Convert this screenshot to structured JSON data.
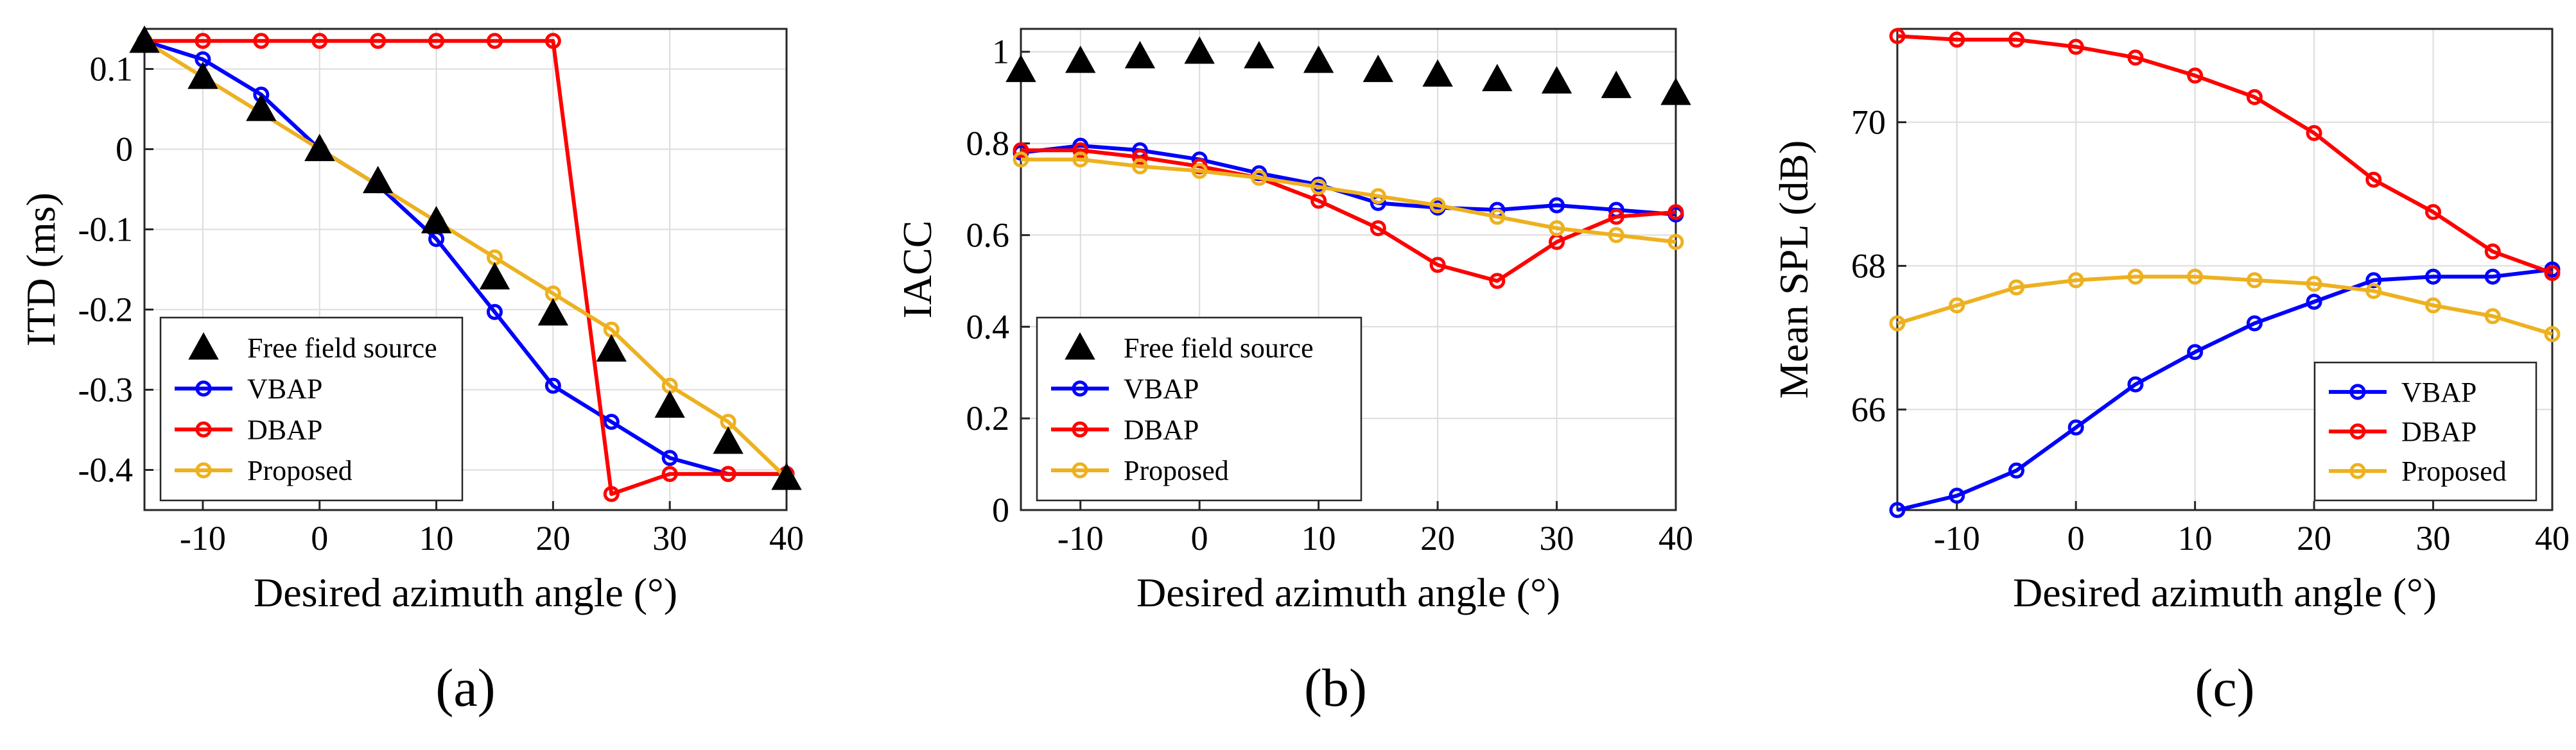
{
  "figure": {
    "captions": [
      "(a)",
      "(b)",
      "(c)"
    ]
  },
  "chart_data": [
    {
      "type": "line",
      "title": "",
      "xlabel": "Desired azimuth angle (°)",
      "ylabel": "ITD (ms)",
      "xlim": [
        -15,
        40
      ],
      "ylim": [
        -0.45,
        0.15
      ],
      "xticks": [
        -10,
        0,
        10,
        20,
        30,
        40
      ],
      "xtick_labels": [
        "-10",
        "0",
        "10",
        "20",
        "30",
        "40"
      ],
      "yticks": [
        0.1,
        0,
        -0.1,
        -0.2,
        -0.3,
        -0.4
      ],
      "ytick_labels": [
        "0.1",
        "0",
        "-0.1",
        "-0.2",
        "-0.3",
        "-0.4"
      ],
      "grid": true,
      "legend_position": "bottom-left",
      "x": [
        -15,
        -10,
        -5,
        0,
        5,
        10,
        15,
        20,
        25,
        30,
        35,
        40
      ],
      "series": [
        {
          "name": "Free field source",
          "style": "triangle",
          "color": "#000000",
          "values": [
            0.135,
            0.09,
            0.05,
            0.0,
            -0.04,
            -0.09,
            -0.16,
            -0.205,
            -0.25,
            -0.32,
            -0.365,
            -0.41
          ]
        },
        {
          "name": "VBAP",
          "style": "line-circle",
          "color": "#0000ff",
          "values": [
            0.135,
            0.112,
            0.068,
            0.0,
            -0.045,
            -0.112,
            -0.203,
            -0.295,
            -0.34,
            -0.385,
            -0.405,
            -0.405
          ]
        },
        {
          "name": "DBAP",
          "style": "line-circle",
          "color": "#ff0000",
          "values": [
            0.135,
            0.135,
            0.135,
            0.135,
            0.135,
            0.135,
            0.135,
            0.135,
            -0.43,
            -0.405,
            -0.405,
            -0.405
          ]
        },
        {
          "name": "Proposed",
          "style": "line-circle",
          "color": "#edb120",
          "values": [
            0.135,
            0.09,
            0.045,
            0.0,
            -0.045,
            -0.09,
            -0.135,
            -0.18,
            -0.225,
            -0.295,
            -0.34,
            -0.41
          ]
        }
      ]
    },
    {
      "type": "line",
      "title": "",
      "xlabel": "Desired azimuth angle (°)",
      "ylabel": "IACC",
      "xlim": [
        -15,
        40
      ],
      "ylim": [
        0,
        1.05
      ],
      "xticks": [
        -10,
        0,
        10,
        20,
        30,
        40
      ],
      "xtick_labels": [
        "-10",
        "0",
        "10",
        "20",
        "30",
        "40"
      ],
      "yticks": [
        0,
        0.2,
        0.4,
        0.6,
        0.8,
        1
      ],
      "ytick_labels": [
        "0",
        "0.2",
        "0.4",
        "0.6",
        "0.8",
        "1"
      ],
      "grid": true,
      "legend_position": "bottom-left",
      "x": [
        -15,
        -10,
        -5,
        0,
        5,
        10,
        15,
        20,
        25,
        30,
        35,
        40
      ],
      "series": [
        {
          "name": "Free field source",
          "style": "triangle",
          "color": "#000000",
          "values": [
            0.96,
            0.98,
            0.99,
            1.0,
            0.99,
            0.98,
            0.96,
            0.95,
            0.94,
            0.935,
            0.925,
            0.91
          ]
        },
        {
          "name": "VBAP",
          "style": "line-circle",
          "color": "#0000ff",
          "values": [
            0.78,
            0.795,
            0.785,
            0.765,
            0.735,
            0.71,
            0.67,
            0.66,
            0.655,
            0.665,
            0.655,
            0.645
          ]
        },
        {
          "name": "DBAP",
          "style": "line-circle",
          "color": "#ff0000",
          "values": [
            0.785,
            0.785,
            0.77,
            0.75,
            0.725,
            0.675,
            0.615,
            0.535,
            0.5,
            0.585,
            0.64,
            0.65
          ]
        },
        {
          "name": "Proposed",
          "style": "line-circle",
          "color": "#edb120",
          "values": [
            0.765,
            0.765,
            0.75,
            0.74,
            0.725,
            0.705,
            0.685,
            0.665,
            0.64,
            0.615,
            0.6,
            0.585
          ]
        }
      ]
    },
    {
      "type": "line",
      "title": "",
      "xlabel": "Desired azimuth angle (°)",
      "ylabel": "Mean SPL (dB)",
      "xlim": [
        -15,
        40
      ],
      "ylim": [
        64.6,
        71.3
      ],
      "xticks": [
        -10,
        0,
        10,
        20,
        30,
        40
      ],
      "xtick_labels": [
        "-10",
        "0",
        "10",
        "20",
        "30",
        "40"
      ],
      "yticks": [
        66,
        68,
        70
      ],
      "ytick_labels": [
        "66",
        "68",
        "70"
      ],
      "grid": true,
      "legend_position": "bottom-right",
      "x": [
        -15,
        -10,
        -5,
        0,
        5,
        10,
        15,
        20,
        25,
        30,
        35,
        40
      ],
      "series": [
        {
          "name": "VBAP",
          "style": "line-circle",
          "color": "#0000ff",
          "values": [
            64.6,
            64.8,
            65.15,
            65.75,
            66.35,
            66.8,
            67.2,
            67.5,
            67.8,
            67.85,
            67.85,
            67.95
          ]
        },
        {
          "name": "DBAP",
          "style": "line-circle",
          "color": "#ff0000",
          "values": [
            71.2,
            71.15,
            71.15,
            71.05,
            70.9,
            70.65,
            70.35,
            69.85,
            69.2,
            68.75,
            68.2,
            67.9
          ]
        },
        {
          "name": "Proposed",
          "style": "line-circle",
          "color": "#edb120",
          "values": [
            67.2,
            67.45,
            67.7,
            67.8,
            67.85,
            67.85,
            67.8,
            67.75,
            67.65,
            67.45,
            67.3,
            67.05
          ]
        }
      ]
    }
  ]
}
